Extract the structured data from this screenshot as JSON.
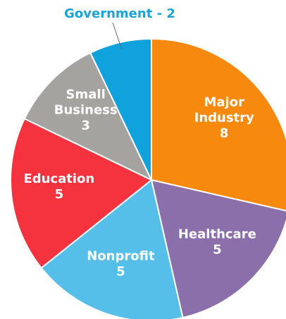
{
  "chart_data": {
    "type": "pie",
    "categories": [
      "Major Industry",
      "Healthcare",
      "Nonprofit",
      "Education",
      "Small Business",
      "Government"
    ],
    "values": [
      8,
      5,
      5,
      5,
      3,
      2
    ],
    "value_labels": [
      "8",
      "5",
      "5",
      "5",
      "3",
      "- 2"
    ],
    "colors": [
      "#f7890f",
      "#8a6fab",
      "#56bfe9",
      "#f5333f",
      "#a5a3a0",
      "#0fa2dc"
    ],
    "outside_label_color": "#1ba3d8"
  }
}
